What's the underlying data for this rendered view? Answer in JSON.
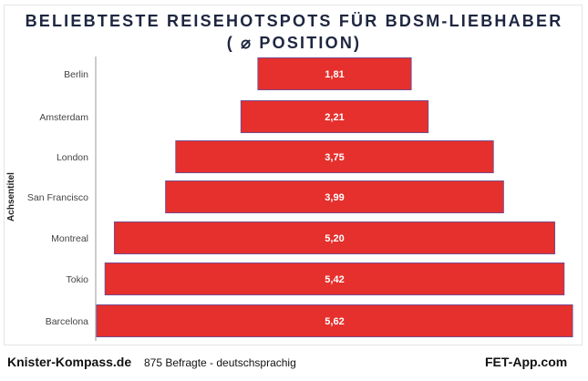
{
  "chart_data": {
    "type": "bar",
    "orientation": "horizontal-centered",
    "title": "BELIEBTESTE REISEHOTSPOTS FÜR BDSM-LIEBHABER",
    "subtitle": "( ⌀ POSITION)",
    "ylabel": "Achsentitel",
    "categories": [
      "Berlin",
      "Amsterdam",
      "London",
      "San Francisco",
      "Montreal",
      "Tokio",
      "Barcelona"
    ],
    "values": [
      1.81,
      2.21,
      3.75,
      3.99,
      5.2,
      5.42,
      5.62
    ],
    "labels": [
      "1,81",
      "2,21",
      "3,75",
      "3,99",
      "5,20",
      "5,42",
      "5,62"
    ],
    "bar_color": "#e5302d",
    "bar_border": "#7a4a8a",
    "grid": false
  },
  "footer": {
    "brand_left": "Knister-Kompass.de",
    "note": "875 Befragte - deutschsprachig",
    "brand_right": "FET-App.com"
  }
}
